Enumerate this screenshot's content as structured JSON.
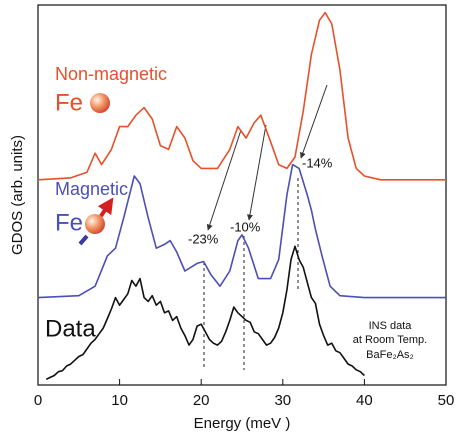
{
  "chart_data": {
    "type": "line",
    "x_label": "Energy (meV )",
    "y_label": "GDOS (arb. units)",
    "xlim": [
      0,
      50
    ],
    "xticks": [
      0,
      10,
      20,
      30,
      40,
      50
    ],
    "ylim": [
      0,
      100
    ],
    "series": [
      {
        "name": "Non-magnetic",
        "color": "#e8502a",
        "x": [
          0,
          4,
          6,
          7,
          7.8,
          9,
          10,
          11,
          12,
          13,
          14,
          15,
          16,
          17,
          18,
          19,
          20,
          22,
          23.5,
          24.5,
          25.5,
          26.5,
          27.3,
          28.5,
          29.5,
          30.5,
          31.5,
          32.5,
          33.5,
          34.5,
          35.2,
          36,
          37,
          38,
          39,
          40,
          42,
          50
        ],
        "values": [
          54,
          54.5,
          56,
          61,
          58,
          62,
          68,
          68,
          71,
          73,
          70,
          63,
          62,
          68,
          65,
          59,
          57,
          57,
          62,
          68,
          65,
          69,
          71,
          64,
          58,
          57,
          60,
          72,
          87,
          96,
          98,
          95,
          83,
          65,
          57,
          55,
          54,
          54
        ]
      },
      {
        "name": "Magnetic",
        "color": "#4b4fb8",
        "x": [
          0,
          5,
          7,
          8.5,
          9.5,
          10.5,
          11.8,
          12.5,
          13.5,
          14.5,
          15.5,
          16.2,
          17,
          18,
          19.5,
          20.3,
          21.2,
          22.3,
          23.5,
          24.5,
          25,
          25.8,
          27,
          28.5,
          29.5,
          30.5,
          31.2,
          32,
          33,
          33.5,
          34,
          34.8,
          35.8,
          37,
          40,
          50
        ],
        "values": [
          23,
          23.5,
          26,
          34,
          36,
          44,
          55,
          53,
          44,
          36,
          37,
          38,
          35,
          30,
          32,
          32.5,
          29,
          26,
          30,
          38,
          39.5,
          36,
          28,
          28,
          33,
          50,
          58,
          57,
          50,
          46,
          41,
          34,
          26,
          23.5,
          23,
          23
        ]
      },
      {
        "name": "Data",
        "color": "#111111",
        "x": [
          1,
          1.5,
          2,
          2.5,
          3,
          3.5,
          4,
          4.5,
          5,
          5.5,
          6,
          6.5,
          7,
          7.5,
          8,
          8.5,
          9,
          9.5,
          10,
          10.5,
          11,
          11.5,
          12,
          12.5,
          13,
          13.5,
          14,
          14.5,
          15,
          15.5,
          16,
          16.5,
          17,
          17.5,
          18,
          18.5,
          19,
          19.5,
          20,
          20.5,
          21,
          21.5,
          22,
          22.5,
          23,
          23.5,
          24,
          24.5,
          25,
          25.5,
          26,
          26.5,
          27,
          27.5,
          28,
          28.5,
          29,
          29.5,
          30,
          30.5,
          31,
          31.5,
          32,
          32.5,
          33,
          33.5,
          34,
          34.5,
          35,
          35.5,
          36,
          36.5,
          37,
          37.5,
          38,
          38.5,
          39,
          39.5,
          40
        ],
        "values": [
          1.5,
          2,
          2.5,
          3.5,
          3.8,
          5,
          5.5,
          6.5,
          7.5,
          8,
          9.5,
          11,
          12,
          13.5,
          15,
          17.5,
          20,
          23,
          21,
          22.5,
          24,
          27.5,
          26,
          28,
          23,
          22,
          23.5,
          21,
          22,
          19,
          19.5,
          17,
          18,
          15,
          13,
          10.5,
          12,
          15.5,
          16,
          14,
          12,
          11,
          10.5,
          11.5,
          14,
          17,
          20.5,
          19,
          18,
          17,
          16.5,
          14,
          13.5,
          12,
          10.5,
          11,
          12.5,
          15,
          19,
          25,
          33,
          36.5,
          33,
          31,
          27,
          23,
          21.5,
          16,
          13,
          10.5,
          11,
          9,
          8.5,
          7,
          5.5,
          5,
          4,
          3.5,
          2.5
        ]
      }
    ],
    "annotations": [
      "Fe",
      "Fe",
      "-23%",
      "-10%",
      "-14%",
      "INS data",
      "at Room Temp.",
      "BaFe₂As₂"
    ]
  }
}
